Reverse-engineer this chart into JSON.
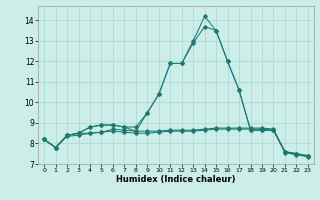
{
  "xlabel": "Humidex (Indice chaleur)",
  "bg_color": "#cceee8",
  "grid_color": "#aad4ce",
  "line_color": "#1a7a6e",
  "xlim": [
    -0.5,
    23.5
  ],
  "ylim": [
    7.0,
    14.7
  ],
  "yticks": [
    7,
    8,
    9,
    10,
    11,
    12,
    13,
    14
  ],
  "xticks": [
    0,
    1,
    2,
    3,
    4,
    5,
    6,
    7,
    8,
    9,
    10,
    11,
    12,
    13,
    14,
    15,
    16,
    17,
    18,
    19,
    20,
    21,
    22,
    23
  ],
  "series": [
    [
      8.2,
      7.8,
      8.4,
      8.5,
      8.5,
      8.55,
      8.7,
      8.65,
      8.6,
      8.6,
      8.6,
      8.65,
      8.65,
      8.65,
      8.7,
      8.75,
      8.75,
      8.75,
      8.75,
      8.75,
      8.7,
      7.6,
      7.5,
      7.4
    ],
    [
      8.2,
      7.8,
      8.4,
      8.5,
      8.8,
      8.9,
      8.9,
      8.8,
      8.8,
      9.5,
      10.4,
      11.9,
      11.9,
      12.9,
      13.7,
      13.5,
      12.0,
      10.6,
      8.65,
      8.65,
      8.65,
      7.6,
      7.5,
      7.4
    ],
    [
      8.2,
      7.8,
      8.4,
      8.5,
      8.8,
      8.9,
      8.9,
      8.8,
      8.6,
      9.5,
      10.4,
      11.9,
      11.9,
      13.0,
      14.2,
      13.5,
      12.0,
      10.6,
      8.65,
      8.65,
      8.65,
      7.6,
      7.5,
      7.4
    ],
    [
      8.2,
      7.8,
      8.35,
      8.4,
      8.5,
      8.55,
      8.6,
      8.55,
      8.5,
      8.5,
      8.55,
      8.6,
      8.6,
      8.6,
      8.65,
      8.7,
      8.7,
      8.7,
      8.7,
      8.7,
      8.65,
      7.55,
      7.45,
      7.35
    ]
  ]
}
